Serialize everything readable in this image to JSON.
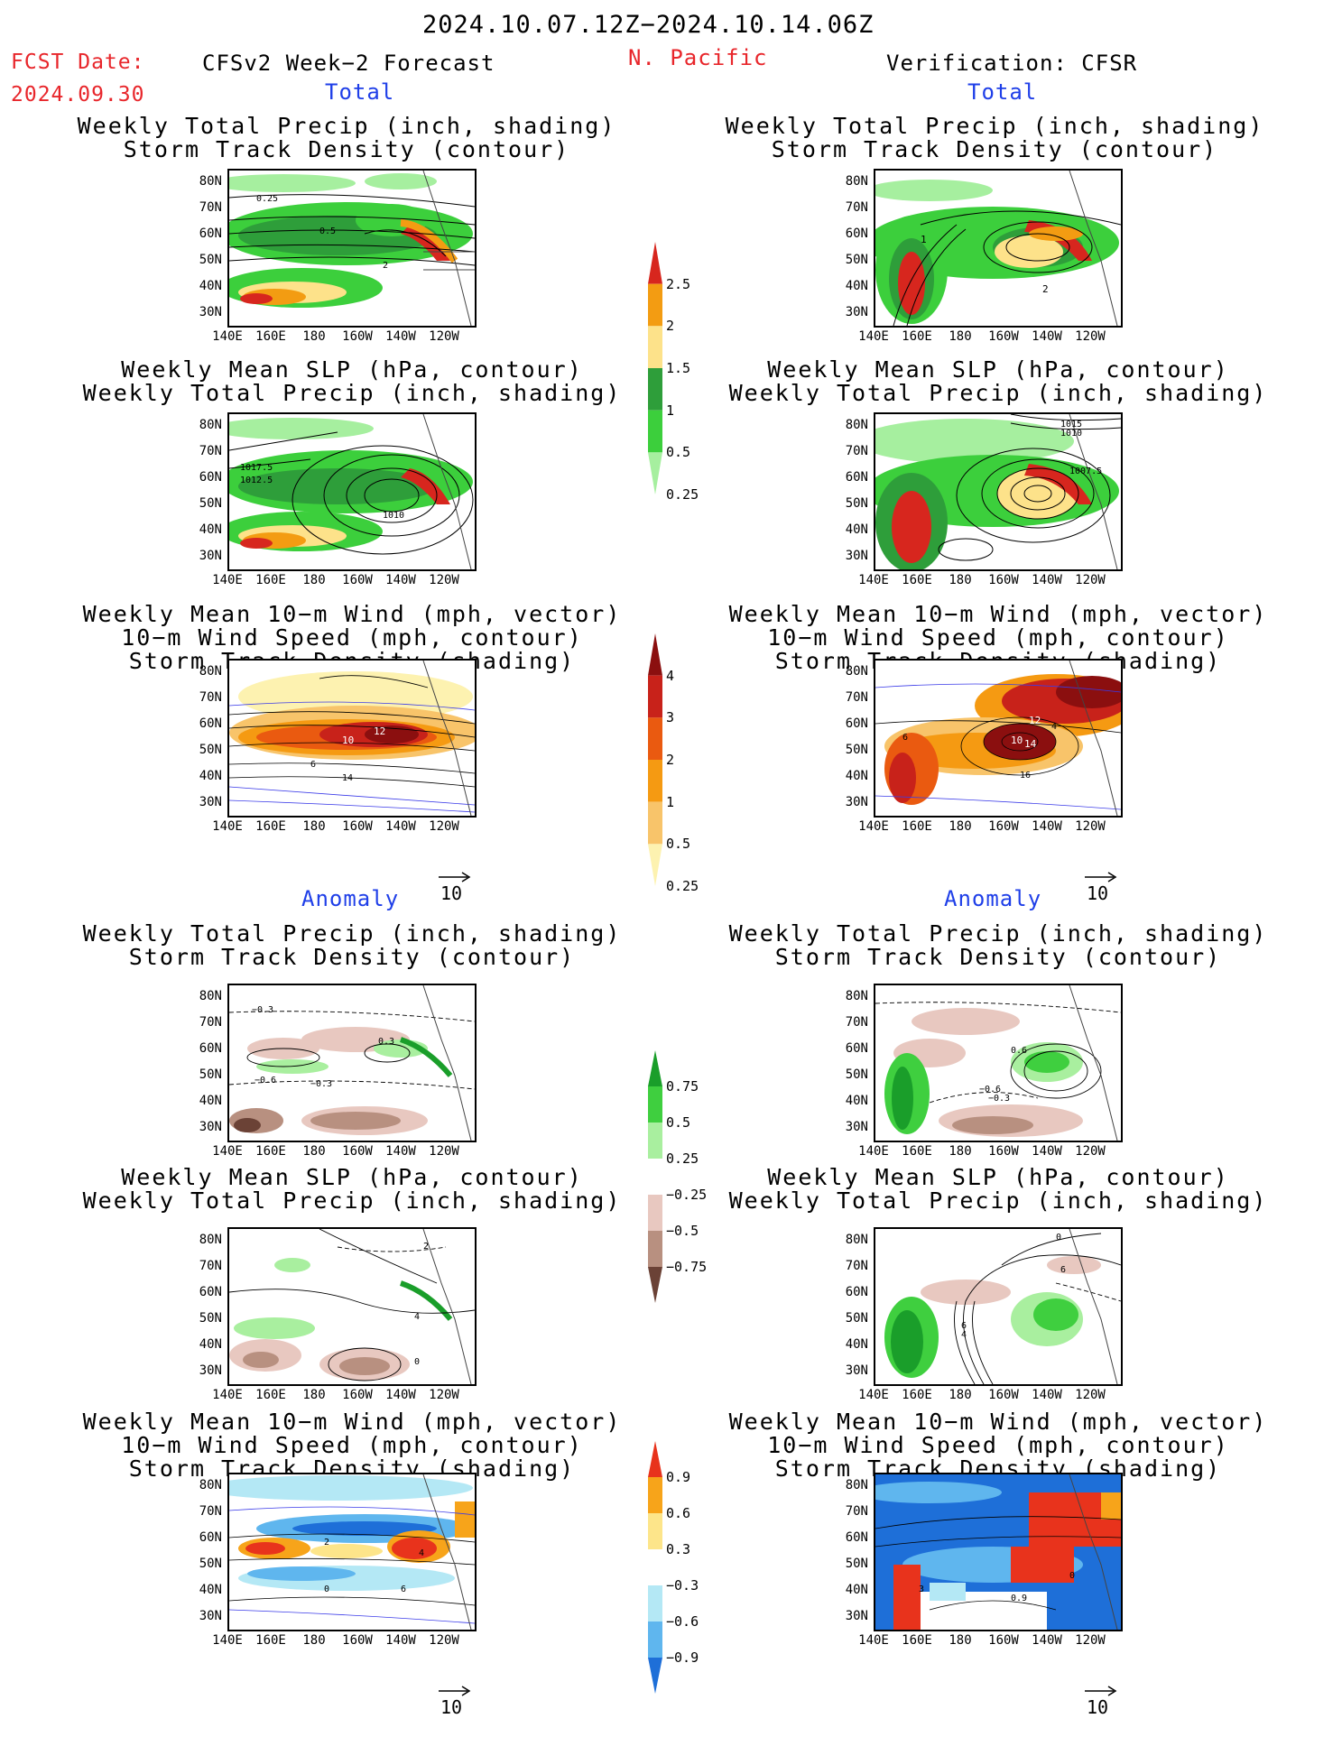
{
  "header": {
    "date_range": "2024.10.07.12Z−2024.10.14.06Z",
    "fcst_label": "FCST Date:",
    "fcst_date": "2024.09.30",
    "region": "N. Pacific",
    "left_title": "CFSv2 Week−2 Forecast",
    "right_title": "Verification: CFSR"
  },
  "sections": {
    "total": "Total",
    "anomaly": "Anomaly"
  },
  "panel_titles": {
    "precip_storm": [
      "Weekly Total Precip (inch, shading)",
      "Storm Track Density (contour)"
    ],
    "slp_precip": [
      "Weekly Mean SLP (hPa, contour)",
      "Weekly Total Precip (inch, shading)"
    ],
    "wind_storm": [
      "Weekly Mean 10−m Wind (mph, vector)",
      "10−m Wind Speed (mph, contour)",
      "Storm Track Density (shading)"
    ]
  },
  "axes": {
    "lat_ticks": [
      "80N",
      "70N",
      "60N",
      "50N",
      "40N",
      "30N"
    ],
    "lon_ticks": [
      "140E",
      "160E",
      "180",
      "160W",
      "140W",
      "120W"
    ],
    "vector_ref": "10"
  },
  "colorbars": {
    "precip_total": {
      "labels": [
        "2.5",
        "2",
        "1.5",
        "1",
        "0.5",
        "0.25"
      ],
      "colors": [
        "#d7261e",
        "#f39c12",
        "#fde28a",
        "#2e9e3a",
        "#3ccf3c",
        "#a6ef9f"
      ]
    },
    "storm_total": {
      "labels": [
        "4",
        "3",
        "2",
        "1",
        "0.5",
        "0.25"
      ],
      "colors": [
        "#8b0f0f",
        "#c8221a",
        "#ea5a10",
        "#f59a12",
        "#f8c46a",
        "#fdf2b0"
      ]
    },
    "precip_anom": {
      "labels": [
        "0.75",
        "0.5",
        "0.25",
        "−0.25",
        "−0.5",
        "−0.75"
      ],
      "colors": [
        "#1a9e2a",
        "#3fcf3f",
        "#a9ef9f",
        "#ffffff",
        "#e8c8c0",
        "#b89080",
        "#6b4236"
      ]
    },
    "storm_anom": {
      "labels": [
        "0.9",
        "0.6",
        "0.3",
        "−0.3",
        "−0.6",
        "−0.9"
      ],
      "colors": [
        "#e8331c",
        "#f7a41a",
        "#fde58a",
        "#ffffff",
        "#b4e8f5",
        "#5fb6ee",
        "#1e6fd8"
      ]
    }
  },
  "map_labels": {
    "l1": [
      "0.25",
      "0.5",
      "2"
    ],
    "r1": [
      "1",
      "2"
    ],
    "l2": [
      "1017.5",
      "1012.5",
      "1010"
    ],
    "r2": [
      "1015",
      "1010",
      "1007.5"
    ],
    "l3": [
      "10",
      "12",
      "14",
      "6"
    ],
    "r3": [
      "12",
      "10",
      "14",
      "16",
      "6",
      "4"
    ],
    "l4": [
      "−0.3",
      "−0.6",
      "−0.3",
      "0.3"
    ],
    "r4": [
      "0.6",
      "−0.6",
      "−0.3"
    ],
    "l5": [
      "2",
      "4",
      "0"
    ],
    "r5": [
      "0",
      "6",
      "4",
      "6"
    ],
    "l6": [
      "2",
      "4",
      "0",
      "6"
    ],
    "r6": [
      "3",
      "0.9",
      "0"
    ]
  }
}
